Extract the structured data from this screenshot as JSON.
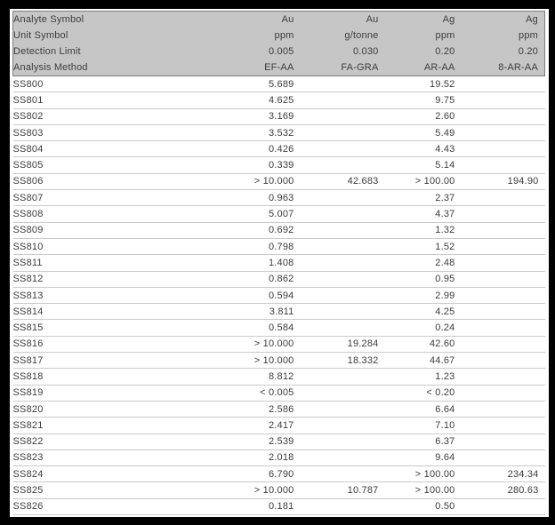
{
  "colors": {
    "frame_bg": "#000000",
    "panel_bg": "#ffffff",
    "header_bg": "#c6c6c6",
    "header_border": "#7d7d7d",
    "row_line": "#cacaca",
    "text": "#3d3d3d"
  },
  "table": {
    "meta_rows": [
      {
        "label": "Analyte Symbol",
        "values": [
          "Au",
          "Au",
          "Ag",
          "Ag"
        ]
      },
      {
        "label": "Unit Symbol",
        "values": [
          "ppm",
          "g/tonne",
          "ppm",
          "ppm"
        ]
      },
      {
        "label": "Detection Limit",
        "values": [
          "0.005",
          "0.030",
          "0.20",
          "0.20"
        ]
      },
      {
        "label": "Analysis Method",
        "values": [
          "EF-AA",
          "FA-GRA",
          "AR-AA",
          "8-AR-AA"
        ]
      }
    ],
    "rows": [
      {
        "sample": "SS800",
        "values": [
          "5.689",
          "",
          "19.52",
          ""
        ]
      },
      {
        "sample": "SS801",
        "values": [
          "4.625",
          "",
          "9.75",
          ""
        ]
      },
      {
        "sample": "SS802",
        "values": [
          "3.169",
          "",
          "2.60",
          ""
        ]
      },
      {
        "sample": "SS803",
        "values": [
          "3.532",
          "",
          "5.49",
          ""
        ]
      },
      {
        "sample": "SS804",
        "values": [
          "0.426",
          "",
          "4.43",
          ""
        ]
      },
      {
        "sample": "SS805",
        "values": [
          "0.339",
          "",
          "5.14",
          ""
        ]
      },
      {
        "sample": "SS806",
        "values": [
          "> 10.000",
          "42.683",
          "> 100.00",
          "194.90"
        ]
      },
      {
        "sample": "SS807",
        "values": [
          "0.963",
          "",
          "2.37",
          ""
        ]
      },
      {
        "sample": "SS808",
        "values": [
          "5.007",
          "",
          "4.37",
          ""
        ]
      },
      {
        "sample": "SS809",
        "values": [
          "0.692",
          "",
          "1.32",
          ""
        ]
      },
      {
        "sample": "SS810",
        "values": [
          "0.798",
          "",
          "1.52",
          ""
        ]
      },
      {
        "sample": "SS811",
        "values": [
          "1.408",
          "",
          "2.48",
          ""
        ]
      },
      {
        "sample": "SS812",
        "values": [
          "0.862",
          "",
          "0.95",
          ""
        ]
      },
      {
        "sample": "SS813",
        "values": [
          "0.594",
          "",
          "2.99",
          ""
        ]
      },
      {
        "sample": "SS814",
        "values": [
          "3.811",
          "",
          "4.25",
          ""
        ]
      },
      {
        "sample": "SS815",
        "values": [
          "0.584",
          "",
          "0.24",
          ""
        ]
      },
      {
        "sample": "SS816",
        "values": [
          "> 10.000",
          "19.284",
          "42.60",
          ""
        ]
      },
      {
        "sample": "SS817",
        "values": [
          "> 10.000",
          "18.332",
          "44.67",
          ""
        ]
      },
      {
        "sample": "SS818",
        "values": [
          "8.812",
          "",
          "1.23",
          ""
        ]
      },
      {
        "sample": "SS819",
        "values": [
          "< 0.005",
          "",
          "< 0.20",
          ""
        ]
      },
      {
        "sample": "SS820",
        "values": [
          "2.586",
          "",
          "6.64",
          ""
        ]
      },
      {
        "sample": "SS821",
        "values": [
          "2.417",
          "",
          "7.10",
          ""
        ]
      },
      {
        "sample": "SS822",
        "values": [
          "2.539",
          "",
          "6.37",
          ""
        ]
      },
      {
        "sample": "SS823",
        "values": [
          "2.018",
          "",
          "9.64",
          ""
        ]
      },
      {
        "sample": "SS824",
        "values": [
          "6.790",
          "",
          "> 100.00",
          "234.34"
        ]
      },
      {
        "sample": "SS825",
        "values": [
          "> 10.000",
          "10.787",
          "> 100.00",
          "280.63"
        ]
      },
      {
        "sample": "SS826",
        "values": [
          "0.181",
          "",
          "0.50",
          ""
        ]
      }
    ]
  }
}
